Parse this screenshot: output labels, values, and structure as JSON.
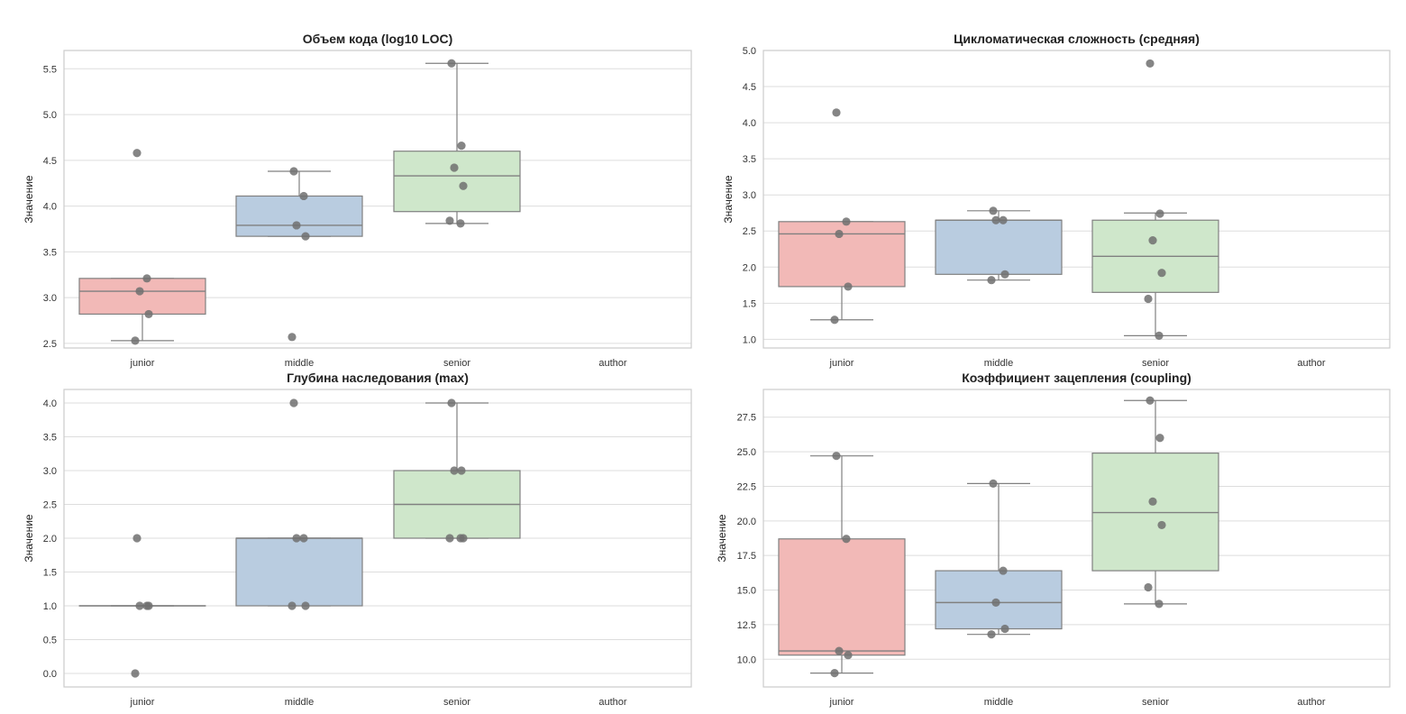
{
  "chart_data": [
    {
      "type": "box",
      "title": "Объем кода (log10 LOC)",
      "ylabel": "Значение",
      "categories": [
        "junior",
        "middle",
        "senior",
        "author"
      ],
      "ylim": [
        2.45,
        5.7
      ],
      "yticks": [
        2.5,
        3.0,
        3.5,
        4.0,
        4.5,
        5.0,
        5.5
      ],
      "ytick_labels": [
        "2.5",
        "3.0",
        "3.5",
        "4.0",
        "4.5",
        "5.0",
        "5.5"
      ],
      "boxes": [
        {
          "category": "junior",
          "q1": 2.82,
          "median": 3.07,
          "q3": 3.21,
          "whisker_low": 2.53,
          "whisker_high": 3.21,
          "points": [
            4.58,
            3.21,
            3.07,
            2.82,
            2.53
          ]
        },
        {
          "category": "middle",
          "q1": 3.67,
          "median": 3.79,
          "q3": 4.11,
          "whisker_low": 3.67,
          "whisker_high": 4.38,
          "points": [
            4.38,
            4.11,
            3.79,
            3.67,
            2.57
          ]
        },
        {
          "category": "senior",
          "q1": 3.94,
          "median": 4.33,
          "q3": 4.6,
          "whisker_low": 3.81,
          "whisker_high": 5.56,
          "points": [
            5.56,
            4.66,
            4.42,
            4.22,
            3.84,
            3.81
          ]
        },
        {
          "category": "author",
          "empty": true
        }
      ]
    },
    {
      "type": "box",
      "title": "Цикломатическая сложность (средняя)",
      "ylabel": "Значение",
      "categories": [
        "junior",
        "middle",
        "senior",
        "author"
      ],
      "ylim": [
        0.88,
        5.0
      ],
      "yticks": [
        1.0,
        1.5,
        2.0,
        2.5,
        3.0,
        3.5,
        4.0,
        4.5,
        5.0
      ],
      "ytick_labels": [
        "1.0",
        "1.5",
        "2.0",
        "2.5",
        "3.0",
        "3.5",
        "4.0",
        "4.5",
        "5.0"
      ],
      "boxes": [
        {
          "category": "junior",
          "q1": 1.73,
          "median": 2.46,
          "q3": 2.63,
          "whisker_low": 1.27,
          "whisker_high": 2.63,
          "points": [
            4.14,
            2.63,
            2.46,
            1.73,
            1.27
          ]
        },
        {
          "category": "middle",
          "q1": 1.9,
          "median": 2.65,
          "q3": 2.65,
          "whisker_low": 1.82,
          "whisker_high": 2.78,
          "points": [
            2.78,
            2.65,
            2.65,
            1.9,
            1.82
          ]
        },
        {
          "category": "senior",
          "q1": 1.65,
          "median": 2.15,
          "q3": 2.65,
          "whisker_low": 1.05,
          "whisker_high": 2.75,
          "points": [
            4.82,
            2.74,
            2.37,
            1.92,
            1.56,
            1.05
          ]
        },
        {
          "category": "author",
          "empty": true
        }
      ]
    },
    {
      "type": "box",
      "title": "Глубина наследования (max)",
      "ylabel": "Значение",
      "categories": [
        "junior",
        "middle",
        "senior",
        "author"
      ],
      "ylim": [
        -0.2,
        4.2
      ],
      "yticks": [
        0.0,
        0.5,
        1.0,
        1.5,
        2.0,
        2.5,
        3.0,
        3.5,
        4.0
      ],
      "ytick_labels": [
        "0.0",
        "0.5",
        "1.0",
        "1.5",
        "2.0",
        "2.5",
        "3.0",
        "3.5",
        "4.0"
      ],
      "boxes": [
        {
          "category": "junior",
          "q1": 1.0,
          "median": 1.0,
          "q3": 1.0,
          "whisker_low": 1.0,
          "whisker_high": 1.0,
          "points": [
            2.0,
            1.0,
            1.0,
            1.0,
            0.0
          ]
        },
        {
          "category": "middle",
          "q1": 1.0,
          "median": 2.0,
          "q3": 2.0,
          "whisker_low": 1.0,
          "whisker_high": 2.0,
          "points": [
            4.0,
            2.0,
            2.0,
            1.0,
            1.0
          ]
        },
        {
          "category": "senior",
          "q1": 2.0,
          "median": 2.5,
          "q3": 3.0,
          "whisker_low": 2.0,
          "whisker_high": 4.0,
          "points": [
            4.0,
            3.0,
            3.0,
            2.0,
            2.0,
            2.0
          ]
        },
        {
          "category": "author",
          "empty": true
        }
      ]
    },
    {
      "type": "box",
      "title": "Коэффициент зацепления (coupling)",
      "ylabel": "Значение",
      "categories": [
        "junior",
        "middle",
        "senior",
        "author"
      ],
      "ylim": [
        8.0,
        29.5
      ],
      "yticks": [
        10.0,
        12.5,
        15.0,
        17.5,
        20.0,
        22.5,
        25.0,
        27.5
      ],
      "ytick_labels": [
        "10.0",
        "12.5",
        "15.0",
        "17.5",
        "20.0",
        "22.5",
        "25.0",
        "27.5"
      ],
      "boxes": [
        {
          "category": "junior",
          "q1": 10.3,
          "median": 10.6,
          "q3": 18.7,
          "whisker_low": 9.0,
          "whisker_high": 24.7,
          "points": [
            24.7,
            18.7,
            10.6,
            10.3,
            9.0
          ]
        },
        {
          "category": "middle",
          "q1": 12.2,
          "median": 14.1,
          "q3": 16.4,
          "whisker_low": 11.8,
          "whisker_high": 22.7,
          "points": [
            22.7,
            16.4,
            14.1,
            12.2,
            11.8
          ]
        },
        {
          "category": "senior",
          "q1": 16.4,
          "median": 20.6,
          "q3": 24.9,
          "whisker_low": 14.0,
          "whisker_high": 28.7,
          "points": [
            28.7,
            26.0,
            21.4,
            19.7,
            15.2,
            14.0
          ]
        },
        {
          "category": "author",
          "empty": true
        }
      ]
    }
  ],
  "colors": {
    "junior": "#f2b9b7",
    "middle": "#b9cce0",
    "senior": "#cfe7cb",
    "box_edge": "#808080",
    "point": "#707070",
    "grid": "#dddddd",
    "frame": "#cccccc"
  }
}
